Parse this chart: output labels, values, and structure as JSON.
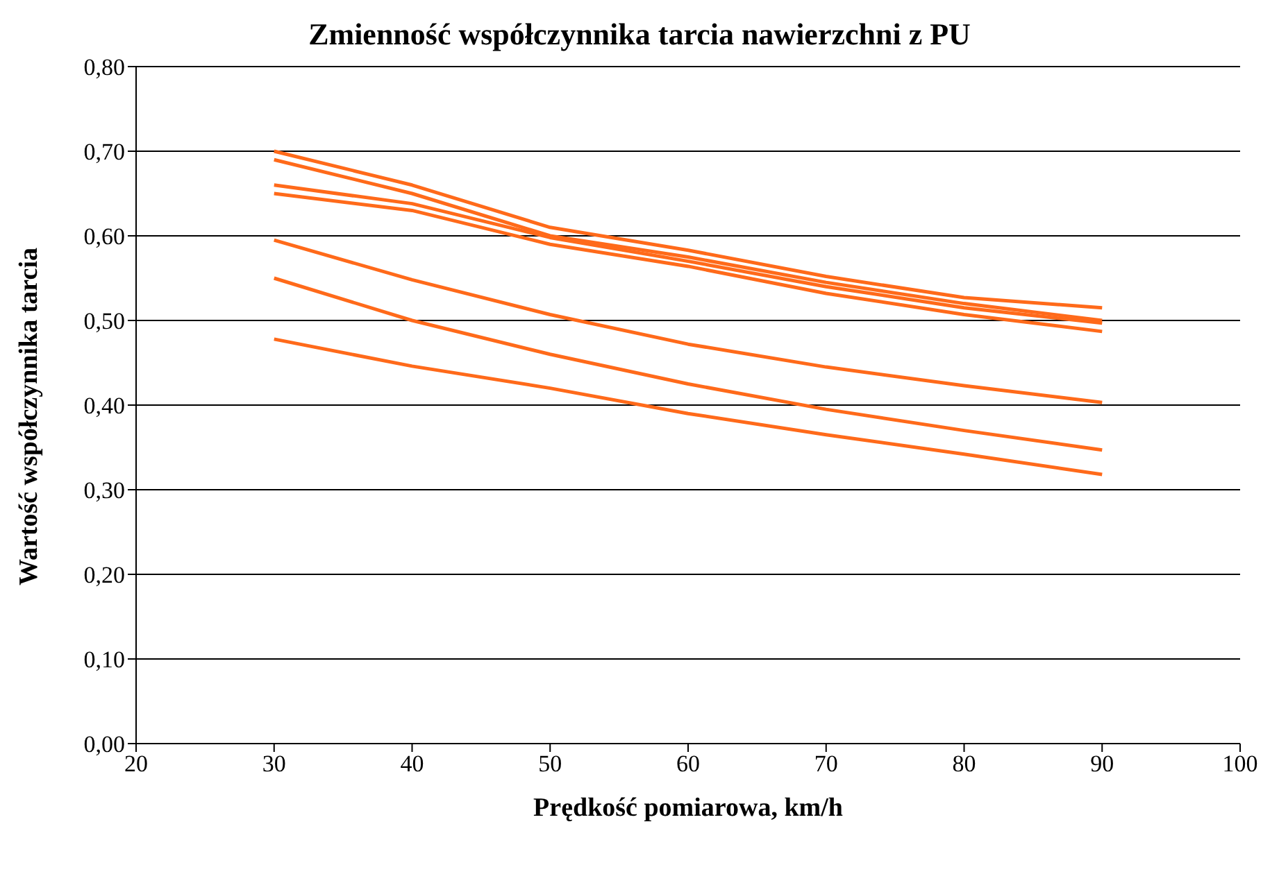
{
  "chart_data": {
    "type": "line",
    "title": "Zmienność współczynnika tarcia nawierzchni z PU",
    "xlabel": "Prędkość pomiarowa, km/h",
    "ylabel": "Wartość współczynnika tarcia",
    "x": [
      30,
      40,
      50,
      60,
      70,
      80,
      90
    ],
    "series": [
      {
        "color": "#ff6a1a",
        "values": [
          0.7,
          0.66,
          0.61,
          0.583,
          0.552,
          0.527,
          0.515
        ]
      },
      {
        "color": "#ff6a1a",
        "values": [
          0.69,
          0.65,
          0.6,
          0.575,
          0.545,
          0.52,
          0.5
        ]
      },
      {
        "color": "#ff6a1a",
        "values": [
          0.66,
          0.638,
          0.598,
          0.57,
          0.54,
          0.515,
          0.497
        ]
      },
      {
        "color": "#ff6a1a",
        "values": [
          0.65,
          0.63,
          0.59,
          0.564,
          0.532,
          0.507,
          0.487
        ]
      },
      {
        "color": "#ff6a1a",
        "values": [
          0.595,
          0.548,
          0.507,
          0.472,
          0.445,
          0.423,
          0.403
        ]
      },
      {
        "color": "#ff6a1a",
        "values": [
          0.55,
          0.5,
          0.46,
          0.425,
          0.395,
          0.37,
          0.347
        ]
      },
      {
        "color": "#ff6a1a",
        "values": [
          0.478,
          0.446,
          0.42,
          0.39,
          0.365,
          0.342,
          0.318
        ]
      }
    ],
    "xlim": [
      20,
      100
    ],
    "xticks": [
      20,
      30,
      40,
      50,
      60,
      70,
      80,
      90,
      100
    ],
    "ylim": [
      0,
      0.8
    ],
    "yticks": [
      {
        "value": 0,
        "label": "0,00"
      },
      {
        "value": 0.1,
        "label": "0,10"
      },
      {
        "value": 0.2,
        "label": "0,20"
      },
      {
        "value": 0.3,
        "label": "0,30"
      },
      {
        "value": 0.4,
        "label": "0,40"
      },
      {
        "value": 0.5,
        "label": "0,50"
      },
      {
        "value": 0.6,
        "label": "0,60"
      },
      {
        "value": 0.7,
        "label": "0,70"
      },
      {
        "value": 0.8,
        "label": "0,80"
      }
    ],
    "grid": "y",
    "legend": false,
    "marker": "none",
    "line_style": "solid"
  }
}
